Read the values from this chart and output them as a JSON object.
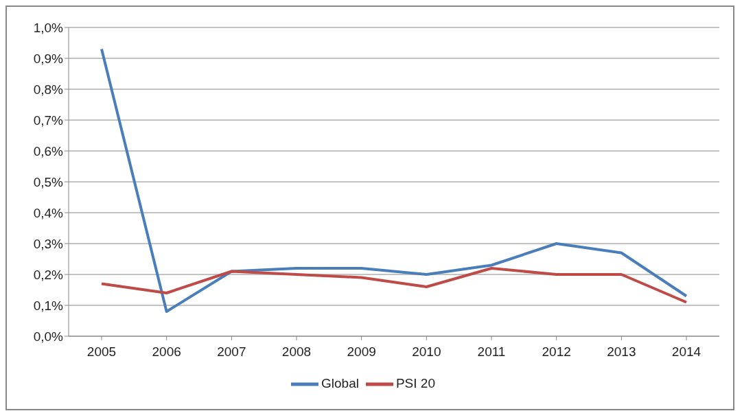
{
  "chart_data": {
    "type": "line",
    "categories": [
      "2005",
      "2006",
      "2007",
      "2008",
      "2009",
      "2010",
      "2011",
      "2012",
      "2013",
      "2014"
    ],
    "series": [
      {
        "name": "Global",
        "color": "#4a7ebb",
        "values": [
          0.93,
          0.08,
          0.21,
          0.22,
          0.22,
          0.2,
          0.23,
          0.3,
          0.27,
          0.13
        ]
      },
      {
        "name": "PSI 20",
        "color": "#be4b48",
        "values": [
          0.17,
          0.14,
          0.21,
          0.2,
          0.19,
          0.16,
          0.22,
          0.2,
          0.2,
          0.11
        ]
      }
    ],
    "ylim": [
      0,
      1
    ],
    "yticks": [
      {
        "value": 0,
        "label": "0,0%"
      },
      {
        "value": 0.1,
        "label": "0,1%"
      },
      {
        "value": 0.2,
        "label": "0,2%"
      },
      {
        "value": 0.3,
        "label": "0,3%"
      },
      {
        "value": 0.4,
        "label": "0,4%"
      },
      {
        "value": 0.5,
        "label": "0,5%"
      },
      {
        "value": 0.6,
        "label": "0,6%"
      },
      {
        "value": 0.7,
        "label": "0,7%"
      },
      {
        "value": 0.8,
        "label": "0,8%"
      },
      {
        "value": 0.9,
        "label": "0,9%"
      },
      {
        "value": 1,
        "label": "1,0%"
      }
    ],
    "grid": "y",
    "legend": "bottom",
    "marker": "none",
    "line_style": "solid"
  }
}
